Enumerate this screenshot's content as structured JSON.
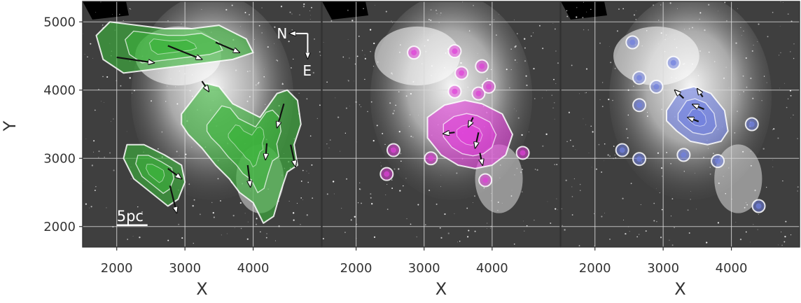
{
  "chart_data": [
    {
      "type": "contour-on-image",
      "panel": "left",
      "xlabel": "X",
      "ylabel": "Y",
      "xlim": [
        1500,
        5000
      ],
      "ylim": [
        1700,
        5300
      ],
      "xticks": [
        2000,
        3000,
        4000
      ],
      "yticks": [
        2000,
        3000,
        4000,
        5000
      ],
      "grid": true,
      "contour_color": "#3cb43c",
      "annotations": {
        "north": "N",
        "east": "E",
        "scalebar": "5pc"
      },
      "contour_regions": [
        {
          "x": [
            1700,
            1900,
            2300,
            2700,
            3100,
            3500,
            3900,
            4000,
            3700,
            3300,
            2900,
            2500,
            2100,
            1800
          ],
          "y": [
            4800,
            5000,
            4950,
            4900,
            4900,
            4950,
            4750,
            4550,
            4450,
            4400,
            4350,
            4300,
            4250,
            4450
          ]
        },
        {
          "x": [
            2950,
            3300,
            3500,
            3700,
            3900,
            4100,
            4350,
            4500,
            4650,
            4700,
            4600,
            4650,
            4500,
            4400,
            4300,
            4150,
            4000,
            3800,
            3650,
            3450,
            3250,
            3050,
            2950
          ],
          "y": [
            3650,
            4100,
            4050,
            3800,
            3700,
            3600,
            3950,
            4000,
            3850,
            3500,
            3200,
            2900,
            2800,
            2500,
            2150,
            2050,
            2350,
            2500,
            2700,
            2900,
            3150,
            3350,
            3500
          ]
        },
        {
          "x": [
            2150,
            2400,
            2700,
            2950,
            3000,
            2900,
            2750,
            2500,
            2250,
            2100
          ],
          "y": [
            3200,
            3200,
            3050,
            2900,
            2650,
            2400,
            2300,
            2500,
            2700,
            3000
          ]
        }
      ],
      "vectors": [
        {
          "x0": 2000,
          "y0": 4480,
          "x1": 2550,
          "y1": 4400
        },
        {
          "x0": 2750,
          "y0": 4650,
          "x1": 3250,
          "y1": 4450
        },
        {
          "x0": 3450,
          "y0": 4700,
          "x1": 3800,
          "y1": 4550
        },
        {
          "x0": 3250,
          "y0": 4130,
          "x1": 3350,
          "y1": 3980
        },
        {
          "x0": 4450,
          "y0": 3800,
          "x1": 4350,
          "y1": 3450
        },
        {
          "x0": 4200,
          "y0": 3220,
          "x1": 4180,
          "y1": 2980
        },
        {
          "x0": 4550,
          "y0": 3200,
          "x1": 4620,
          "y1": 2880
        },
        {
          "x0": 3920,
          "y0": 2900,
          "x1": 3960,
          "y1": 2580
        },
        {
          "x0": 2750,
          "y0": 2850,
          "x1": 2950,
          "y1": 2700
        },
        {
          "x0": 2780,
          "y0": 2600,
          "x1": 2880,
          "y1": 2200
        }
      ]
    },
    {
      "type": "contour-on-image",
      "panel": "middle",
      "xlabel": "X",
      "xlim": [
        1500,
        5000
      ],
      "ylim": [
        1700,
        5300
      ],
      "xticks": [
        2000,
        3000,
        4000
      ],
      "grid": true,
      "contour_color": "#e040d8",
      "contour_regions": [
        {
          "x": [
            3050,
            3300,
            3600,
            3850,
            4150,
            4300,
            4200,
            4000,
            3750,
            3500,
            3250,
            3050
          ],
          "y": [
            3600,
            3780,
            3850,
            3800,
            3650,
            3350,
            3050,
            2900,
            2850,
            2900,
            3050,
            3300
          ]
        }
      ],
      "blobs": [
        {
          "x": 2850,
          "y": 4550
        },
        {
          "x": 3450,
          "y": 4570
        },
        {
          "x": 3550,
          "y": 4250
        },
        {
          "x": 3850,
          "y": 4350
        },
        {
          "x": 3800,
          "y": 3950
        },
        {
          "x": 3950,
          "y": 4050
        },
        {
          "x": 2550,
          "y": 3120
        },
        {
          "x": 2450,
          "y": 2770
        },
        {
          "x": 4450,
          "y": 3080
        },
        {
          "x": 3900,
          "y": 2680
        },
        {
          "x": 3450,
          "y": 3980
        },
        {
          "x": 3100,
          "y": 3000
        }
      ],
      "vectors": [
        {
          "x0": 3450,
          "y0": 3380,
          "x1": 3280,
          "y1": 3360
        },
        {
          "x0": 3720,
          "y0": 3600,
          "x1": 3650,
          "y1": 3460
        },
        {
          "x0": 3800,
          "y0": 3380,
          "x1": 3750,
          "y1": 3150
        },
        {
          "x0": 3820,
          "y0": 3080,
          "x1": 3860,
          "y1": 2900
        }
      ]
    },
    {
      "type": "contour-on-image",
      "panel": "right",
      "xlabel": "X",
      "xlim": [
        1500,
        5000
      ],
      "ylim": [
        1700,
        5300
      ],
      "xticks": [
        2000,
        3000,
        4000
      ],
      "grid": true,
      "contour_color": "#7080e0",
      "contour_regions": [
        {
          "x": [
            3050,
            3250,
            3450,
            3700,
            3900,
            3950,
            3850,
            3650,
            3400,
            3200,
            3050
          ],
          "y": [
            3700,
            4000,
            4050,
            3950,
            3700,
            3400,
            3250,
            3200,
            3250,
            3400,
            3550
          ]
        }
      ],
      "blobs": [
        {
          "x": 2550,
          "y": 4700
        },
        {
          "x": 3150,
          "y": 4400
        },
        {
          "x": 2900,
          "y": 4050
        },
        {
          "x": 2650,
          "y": 3780
        },
        {
          "x": 2400,
          "y": 3120
        },
        {
          "x": 2650,
          "y": 2990
        },
        {
          "x": 3300,
          "y": 3050
        },
        {
          "x": 3800,
          "y": 2960
        },
        {
          "x": 4300,
          "y": 3500
        },
        {
          "x": 4400,
          "y": 2300
        },
        {
          "x": 2650,
          "y": 4180
        }
      ],
      "vectors": [
        {
          "x0": 3300,
          "y0": 3880,
          "x1": 3170,
          "y1": 4000
        },
        {
          "x0": 3580,
          "y0": 3900,
          "x1": 3500,
          "y1": 4020
        },
        {
          "x0": 3600,
          "y0": 3720,
          "x1": 3430,
          "y1": 3790
        },
        {
          "x0": 3520,
          "y0": 3540,
          "x1": 3360,
          "y1": 3600
        }
      ]
    }
  ]
}
